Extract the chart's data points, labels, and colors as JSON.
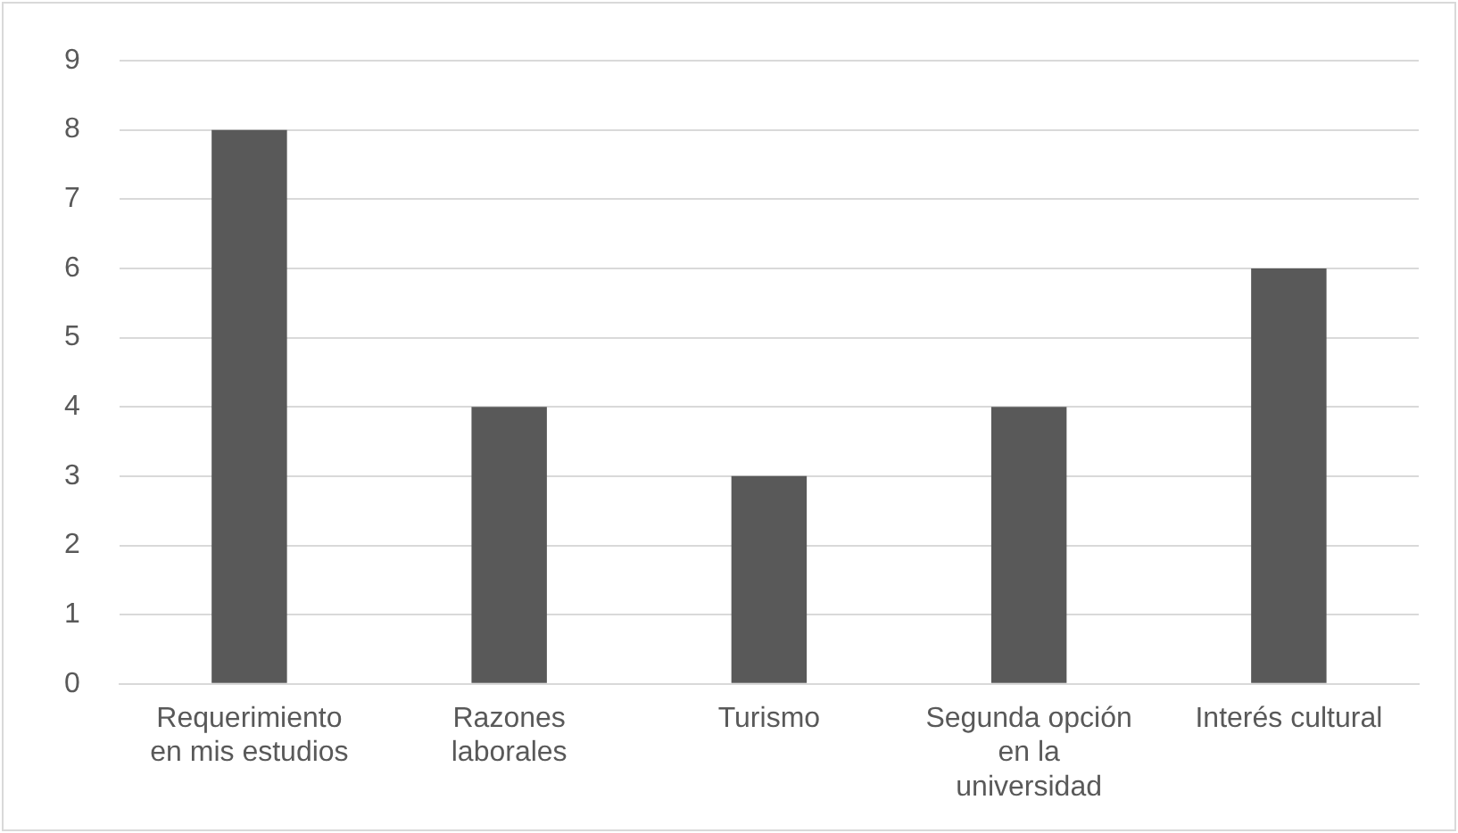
{
  "chart_data": {
    "type": "bar",
    "categories": [
      "Requerimiento en mis estudios",
      "Razones laborales",
      "Turismo",
      "Segunda opción en la universidad",
      "Interés cultural"
    ],
    "values": [
      8,
      4,
      3,
      4,
      6
    ],
    "color": "#595959",
    "ylim": [
      0,
      9
    ],
    "yticks": [
      0,
      1,
      2,
      3,
      4,
      5,
      6,
      7,
      8,
      9
    ],
    "grid": "y",
    "legend": false
  }
}
